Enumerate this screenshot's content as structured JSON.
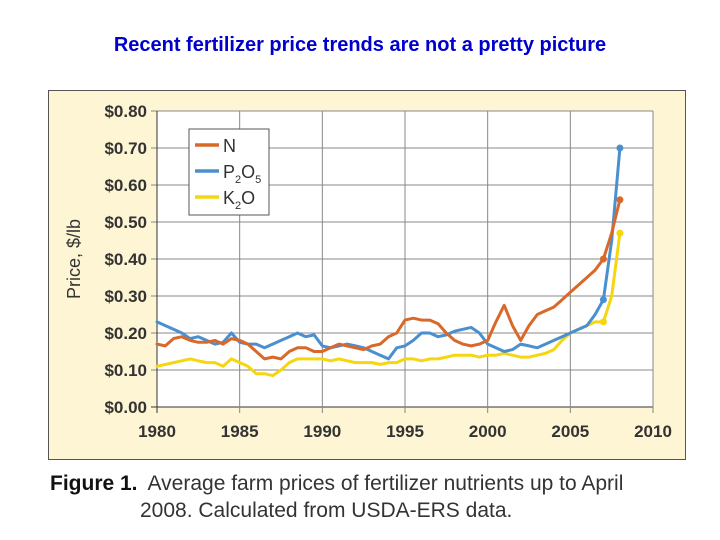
{
  "slide_title": "Recent fertilizer price trends are not a pretty picture",
  "caption": {
    "label": "Figure 1.",
    "line1": "Average farm prices of fertilizer nutrients up to April",
    "line2": "2008. Calculated from USDA-ERS data."
  },
  "colors": {
    "N": "#d9692a",
    "P2O5": "#4a8fd0",
    "K2O": "#f5d60f",
    "panel": "#fdf5d3",
    "grid": "#888888"
  },
  "legend": {
    "placement": "top-left",
    "items": [
      {
        "base": "N",
        "sub": ""
      },
      {
        "base": "P",
        "sub": "2",
        "base2": "O",
        "sub2": "5"
      },
      {
        "base": "K",
        "sub": "2",
        "base2": "O",
        "sub2": ""
      }
    ]
  },
  "chart_data": {
    "type": "line",
    "title": "",
    "xlabel": "",
    "ylabel": "Price, $/lb",
    "xlim": [
      1980,
      2010
    ],
    "ylim": [
      0,
      0.8
    ],
    "x_ticks": [
      "1980",
      "1985",
      "1990",
      "1995",
      "2000",
      "2005",
      "2010"
    ],
    "y_ticks": [
      "$0.00",
      "$0.10",
      "$0.20",
      "$0.30",
      "$0.40",
      "$0.50",
      "$0.60",
      "$0.70",
      "$0.80"
    ],
    "grid": true,
    "series": [
      {
        "name": "N",
        "x": [
          1980,
          1980.5,
          1981,
          1981.5,
          1982,
          1982.5,
          1983,
          1983.5,
          1984,
          1984.5,
          1985,
          1985.5,
          1986,
          1986.5,
          1987,
          1987.5,
          1988,
          1988.5,
          1989,
          1989.5,
          1990,
          1990.5,
          1991,
          1991.5,
          1992,
          1992.5,
          1993,
          1993.5,
          1994,
          1994.5,
          1995,
          1995.5,
          1996,
          1996.5,
          1997,
          1997.5,
          1998,
          1998.5,
          1999,
          1999.5,
          2000,
          2000.5,
          2001,
          2001.5,
          2002,
          2002.5,
          2003,
          2003.5,
          2004,
          2004.5,
          2005,
          2005.5,
          2006,
          2006.5,
          2007,
          2007.5,
          2008
        ],
        "y": [
          0.17,
          0.165,
          0.185,
          0.19,
          0.18,
          0.175,
          0.175,
          0.18,
          0.17,
          0.185,
          0.18,
          0.17,
          0.15,
          0.13,
          0.135,
          0.13,
          0.15,
          0.16,
          0.16,
          0.15,
          0.15,
          0.16,
          0.17,
          0.165,
          0.16,
          0.155,
          0.165,
          0.17,
          0.19,
          0.2,
          0.235,
          0.24,
          0.235,
          0.235,
          0.225,
          0.2,
          0.18,
          0.17,
          0.165,
          0.17,
          0.18,
          0.23,
          0.275,
          0.22,
          0.18,
          0.22,
          0.25,
          0.26,
          0.27,
          0.29,
          0.31,
          0.33,
          0.35,
          0.37,
          0.4,
          0.47,
          0.56
        ]
      },
      {
        "name": "P2O5",
        "x": [
          1980,
          1980.5,
          1981,
          1981.5,
          1982,
          1982.5,
          1983,
          1983.5,
          1984,
          1984.5,
          1985,
          1985.5,
          1986,
          1986.5,
          1987,
          1987.5,
          1988,
          1988.5,
          1989,
          1989.5,
          1990,
          1990.5,
          1991,
          1991.5,
          1992,
          1992.5,
          1993,
          1993.5,
          1994,
          1994.5,
          1995,
          1995.5,
          1996,
          1996.5,
          1997,
          1997.5,
          1998,
          1998.5,
          1999,
          1999.5,
          2000,
          2000.5,
          2001,
          2001.5,
          2002,
          2002.5,
          2003,
          2003.5,
          2004,
          2004.5,
          2005,
          2005.5,
          2006,
          2006.5,
          2007,
          2007.5,
          2008
        ],
        "y": [
          0.23,
          0.22,
          0.21,
          0.2,
          0.185,
          0.19,
          0.18,
          0.17,
          0.175,
          0.2,
          0.175,
          0.17,
          0.17,
          0.16,
          0.17,
          0.18,
          0.19,
          0.2,
          0.19,
          0.195,
          0.165,
          0.16,
          0.165,
          0.17,
          0.165,
          0.16,
          0.15,
          0.14,
          0.13,
          0.16,
          0.165,
          0.18,
          0.2,
          0.2,
          0.19,
          0.195,
          0.205,
          0.21,
          0.215,
          0.2,
          0.17,
          0.16,
          0.15,
          0.155,
          0.17,
          0.165,
          0.16,
          0.17,
          0.18,
          0.19,
          0.2,
          0.21,
          0.22,
          0.25,
          0.29,
          0.45,
          0.7
        ]
      },
      {
        "name": "K2O",
        "x": [
          1980,
          1980.5,
          1981,
          1981.5,
          1982,
          1982.5,
          1983,
          1983.5,
          1984,
          1984.5,
          1985,
          1985.5,
          1986,
          1986.5,
          1987,
          1987.5,
          1988,
          1988.5,
          1989,
          1989.5,
          1990,
          1990.5,
          1991,
          1991.5,
          1992,
          1992.5,
          1993,
          1993.5,
          1994,
          1994.5,
          1995,
          1995.5,
          1996,
          1996.5,
          1997,
          1997.5,
          1998,
          1998.5,
          1999,
          1999.5,
          2000,
          2000.5,
          2001,
          2001.5,
          2002,
          2002.5,
          2003,
          2003.5,
          2004,
          2004.5,
          2005,
          2005.5,
          2006,
          2006.5,
          2007,
          2007.5,
          2008
        ],
        "y": [
          0.11,
          0.115,
          0.12,
          0.125,
          0.13,
          0.125,
          0.12,
          0.12,
          0.11,
          0.13,
          0.12,
          0.11,
          0.09,
          0.09,
          0.085,
          0.1,
          0.12,
          0.13,
          0.13,
          0.13,
          0.13,
          0.125,
          0.13,
          0.125,
          0.12,
          0.12,
          0.12,
          0.115,
          0.12,
          0.12,
          0.13,
          0.13,
          0.125,
          0.13,
          0.13,
          0.135,
          0.14,
          0.14,
          0.14,
          0.135,
          0.14,
          0.14,
          0.145,
          0.14,
          0.135,
          0.135,
          0.14,
          0.145,
          0.155,
          0.18,
          0.2,
          0.21,
          0.22,
          0.23,
          0.23,
          0.3,
          0.47
        ]
      }
    ]
  }
}
